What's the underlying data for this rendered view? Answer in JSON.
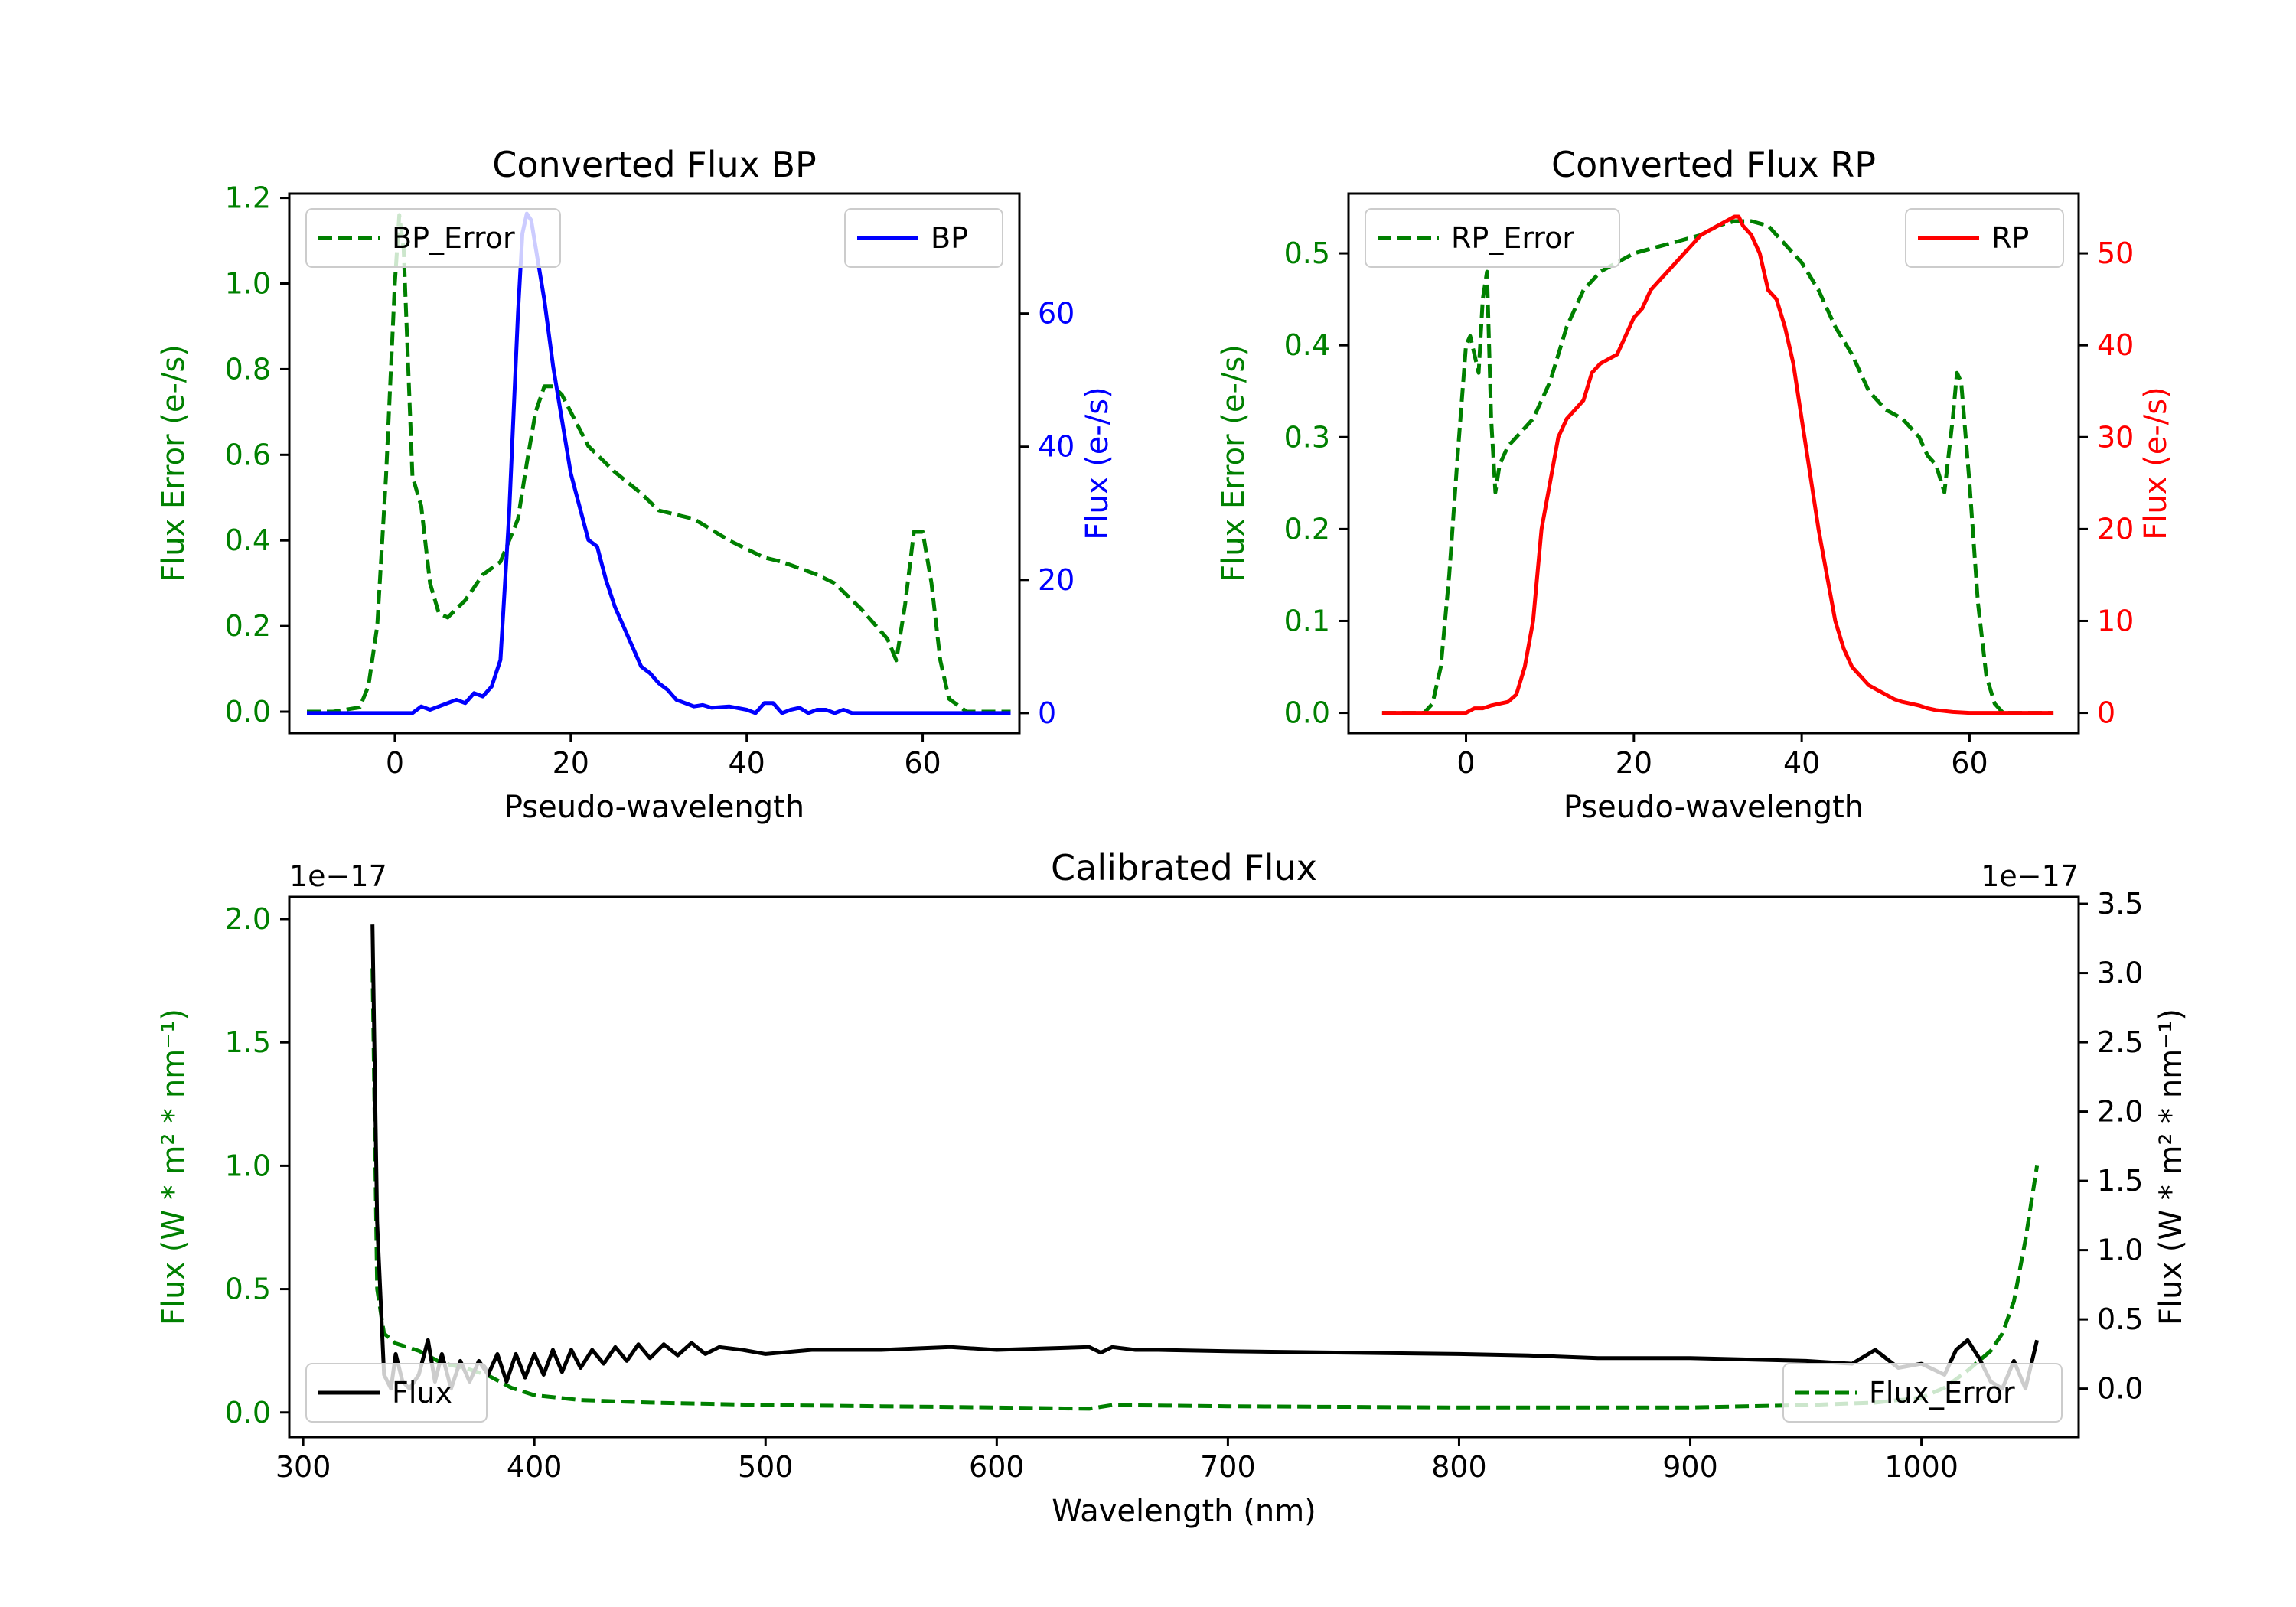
{
  "colors": {
    "bp": "#0000ff",
    "rp": "#ff0000",
    "error": "#008000",
    "flux": "#000000",
    "axes": "#000000"
  },
  "chart_data": [
    {
      "id": "bp",
      "type": "line",
      "title": "Converted Flux BP",
      "xlabel": "Pseudo-wavelength",
      "ylabel_left": "Flux Error (e-/s)",
      "ylabel_right": "Flux (e-/s)",
      "xlim": [
        -12,
        71
      ],
      "ylim_left": [
        -0.05,
        1.21
      ],
      "ylim_right": [
        -3,
        78
      ],
      "xticks": [
        "0",
        "20",
        "40",
        "60"
      ],
      "yticks_left": [
        "0.0",
        "0.2",
        "0.4",
        "0.6",
        "0.8",
        "1.0",
        "1.2"
      ],
      "yticks_right": [
        "0",
        "20",
        "40",
        "60"
      ],
      "legend_left": "BP_Error",
      "legend_right": "BP",
      "series": [
        {
          "name": "BP_Error",
          "axis": "left",
          "style": "dashed",
          "color": "#008000",
          "x": [
            -10,
            -7,
            -4,
            -3,
            -2,
            -1,
            0,
            0.5,
            1,
            2,
            3,
            4,
            5,
            6,
            8,
            10,
            12,
            14,
            15,
            16,
            17,
            18,
            19,
            20,
            22,
            25,
            28,
            30,
            34,
            38,
            42,
            44,
            48,
            50,
            53,
            56,
            57,
            58,
            59,
            60,
            61,
            62,
            63,
            65,
            70
          ],
          "y": [
            0.0,
            0.0,
            0.01,
            0.06,
            0.2,
            0.55,
            1.0,
            1.16,
            1.08,
            0.55,
            0.48,
            0.3,
            0.23,
            0.22,
            0.26,
            0.32,
            0.35,
            0.45,
            0.58,
            0.7,
            0.76,
            0.76,
            0.74,
            0.7,
            0.62,
            0.56,
            0.51,
            0.47,
            0.45,
            0.4,
            0.36,
            0.35,
            0.32,
            0.3,
            0.24,
            0.17,
            0.12,
            0.25,
            0.42,
            0.42,
            0.3,
            0.12,
            0.03,
            0.0,
            0.0
          ]
        },
        {
          "name": "BP",
          "axis": "right",
          "style": "solid",
          "color": "#0000ff",
          "x": [
            -10,
            -5,
            0,
            2,
            3,
            4,
            5,
            6,
            7,
            8,
            9,
            10,
            11,
            12,
            13,
            14,
            14.5,
            15,
            15.5,
            16,
            17,
            18,
            19,
            20,
            21,
            22,
            23,
            24,
            25,
            26,
            27,
            28,
            29,
            30,
            31,
            32,
            33,
            34,
            35,
            36,
            38,
            40,
            41,
            42,
            43,
            44,
            45,
            46,
            47,
            48,
            49,
            50,
            51,
            52,
            55,
            60,
            65,
            70
          ],
          "y": [
            0,
            0,
            0,
            0,
            1,
            0.5,
            1,
            1.5,
            2,
            1.5,
            3,
            2.5,
            4,
            8,
            30,
            60,
            72,
            75,
            74,
            70,
            62,
            52,
            44,
            36,
            31,
            26,
            25,
            20,
            16,
            13,
            10,
            7,
            6,
            4.5,
            3.5,
            2,
            1.5,
            1,
            1.2,
            0.8,
            1,
            0.5,
            0,
            1.5,
            1.5,
            0,
            0.5,
            0.8,
            0,
            0.5,
            0.5,
            0,
            0.5,
            0,
            0,
            0,
            0,
            0
          ]
        }
      ]
    },
    {
      "id": "rp",
      "type": "line",
      "title": "Converted Flux RP",
      "xlabel": "Pseudo-wavelength",
      "ylabel_left": "Flux Error (e-/s)",
      "ylabel_right": "Flux (e-/s)",
      "xlim": [
        -14,
        73
      ],
      "ylim_left": [
        -0.022,
        0.565
      ],
      "ylim_right": [
        -2.2,
        56.5
      ],
      "xticks": [
        "0",
        "20",
        "40",
        "60"
      ],
      "yticks_left": [
        "0.0",
        "0.1",
        "0.2",
        "0.3",
        "0.4",
        "0.5"
      ],
      "yticks_right": [
        "0",
        "10",
        "20",
        "30",
        "40",
        "50"
      ],
      "legend_left": "RP_Error",
      "legend_right": "RP",
      "series": [
        {
          "name": "RP_Error",
          "axis": "left",
          "style": "dashed",
          "color": "#008000",
          "x": [
            -10,
            -5,
            -4,
            -3,
            -2,
            -1,
            0,
            0.5,
            1,
            1.5,
            2,
            2.5,
            3,
            3.5,
            4,
            5,
            6,
            8,
            10,
            12,
            14,
            16,
            18,
            20,
            24,
            28,
            30,
            32,
            34,
            36,
            38,
            40,
            42,
            44,
            46,
            48,
            50,
            52,
            54,
            55,
            56,
            57,
            58,
            58.5,
            59,
            60,
            61,
            62,
            63,
            64,
            65,
            70
          ],
          "y": [
            0.0,
            0.0,
            0.01,
            0.05,
            0.15,
            0.28,
            0.4,
            0.41,
            0.39,
            0.37,
            0.45,
            0.48,
            0.32,
            0.24,
            0.27,
            0.29,
            0.3,
            0.32,
            0.36,
            0.42,
            0.46,
            0.48,
            0.49,
            0.5,
            0.51,
            0.52,
            0.53,
            0.535,
            0.535,
            0.53,
            0.51,
            0.49,
            0.46,
            0.42,
            0.39,
            0.35,
            0.33,
            0.32,
            0.3,
            0.28,
            0.27,
            0.24,
            0.32,
            0.37,
            0.36,
            0.25,
            0.12,
            0.04,
            0.01,
            0.0,
            0.0,
            0.0
          ]
        },
        {
          "name": "RP",
          "axis": "right",
          "style": "solid",
          "color": "#ff0000",
          "x": [
            -10,
            -5,
            0,
            1,
            2,
            3,
            4,
            5,
            6,
            7,
            8,
            9,
            10,
            11,
            12,
            13,
            14,
            15,
            16,
            17,
            18,
            19,
            20,
            21,
            22,
            23,
            24,
            25,
            26,
            27,
            28,
            29,
            30,
            31,
            32,
            32.5,
            33,
            34,
            34.5,
            35,
            36,
            37,
            38,
            39,
            40,
            41,
            42,
            43,
            44,
            45,
            46,
            47,
            48,
            49,
            50,
            51,
            52,
            53,
            54,
            55,
            56,
            57,
            58,
            60,
            65,
            70
          ],
          "y": [
            0,
            0,
            0,
            0.5,
            0.5,
            0.8,
            1,
            1.2,
            2,
            5,
            10,
            20,
            25,
            30,
            32,
            33,
            34,
            37,
            38,
            38.5,
            39,
            41,
            43,
            44,
            46,
            47,
            48,
            49,
            50,
            51,
            52,
            52.5,
            53,
            53.5,
            54,
            54,
            53,
            52,
            51,
            50,
            46,
            45,
            42,
            38,
            32,
            26,
            20,
            15,
            10,
            7,
            5,
            4,
            3,
            2.5,
            2,
            1.5,
            1.2,
            1.0,
            0.8,
            0.5,
            0.3,
            0.2,
            0.1,
            0,
            0,
            0
          ]
        }
      ]
    },
    {
      "id": "calibrated",
      "type": "line",
      "title": "Calibrated Flux",
      "xlabel": "Wavelength (nm)",
      "ylabel_left": "Flux (W * m² * nm⁻¹)",
      "ylabel_right": "Flux (W * m² * nm⁻¹)",
      "offset_left": "1e−17",
      "offset_right": "1e−17",
      "xlim": [
        294,
        1068
      ],
      "ylim_left": [
        -0.1,
        2.09
      ],
      "ylim_right": [
        -0.35,
        3.55
      ],
      "xticks": [
        "300",
        "400",
        "500",
        "600",
        "700",
        "800",
        "900",
        "1000"
      ],
      "yticks_left": [
        "0.0",
        "0.5",
        "1.0",
        "1.5",
        "2.0"
      ],
      "yticks_right": [
        "0.0",
        "0.5",
        "1.0",
        "1.5",
        "2.0",
        "2.5",
        "3.0",
        "3.5"
      ],
      "legend_left": "Flux",
      "legend_right": "Flux_Error",
      "series": [
        {
          "name": "Flux_Error",
          "axis": "left",
          "style": "dashed",
          "color": "#008000",
          "x": [
            330,
            332,
            335,
            340,
            350,
            360,
            370,
            380,
            390,
            400,
            420,
            450,
            500,
            550,
            600,
            640,
            650,
            700,
            800,
            900,
            950,
            980,
            1000,
            1010,
            1020,
            1030,
            1035,
            1040,
            1045,
            1050
          ],
          "y": [
            1.8,
            0.5,
            0.32,
            0.28,
            0.25,
            0.2,
            0.18,
            0.15,
            0.1,
            0.07,
            0.05,
            0.04,
            0.03,
            0.025,
            0.02,
            0.015,
            0.03,
            0.025,
            0.02,
            0.02,
            0.03,
            0.04,
            0.06,
            0.1,
            0.17,
            0.25,
            0.32,
            0.45,
            0.7,
            1.0
          ]
        },
        {
          "name": "Flux",
          "axis": "right",
          "style": "solid",
          "color": "#000000",
          "x": [
            330,
            332,
            335,
            338,
            340,
            343,
            346,
            350,
            354,
            357,
            360,
            364,
            368,
            372,
            376,
            380,
            384,
            388,
            392,
            396,
            400,
            404,
            408,
            412,
            416,
            420,
            425,
            430,
            435,
            440,
            445,
            450,
            456,
            462,
            468,
            474,
            480,
            490,
            500,
            520,
            550,
            580,
            600,
            640,
            645,
            650,
            660,
            670,
            700,
            750,
            800,
            830,
            860,
            900,
            950,
            970,
            980,
            990,
            1000,
            1010,
            1015,
            1020,
            1025,
            1030,
            1035,
            1040,
            1045,
            1050
          ],
          "y": [
            3.35,
            1.2,
            0.1,
            0.0,
            0.25,
            0.05,
            0.0,
            0.1,
            0.35,
            0.05,
            0.25,
            0.0,
            0.2,
            0.05,
            0.2,
            0.1,
            0.25,
            0.05,
            0.25,
            0.08,
            0.25,
            0.1,
            0.28,
            0.12,
            0.28,
            0.15,
            0.28,
            0.18,
            0.3,
            0.2,
            0.32,
            0.22,
            0.32,
            0.24,
            0.33,
            0.25,
            0.3,
            0.28,
            0.25,
            0.28,
            0.28,
            0.3,
            0.28,
            0.3,
            0.26,
            0.3,
            0.28,
            0.28,
            0.27,
            0.26,
            0.25,
            0.24,
            0.22,
            0.22,
            0.2,
            0.18,
            0.28,
            0.15,
            0.18,
            0.1,
            0.28,
            0.35,
            0.22,
            0.05,
            0.0,
            0.2,
            0.0,
            0.35
          ]
        }
      ]
    }
  ]
}
